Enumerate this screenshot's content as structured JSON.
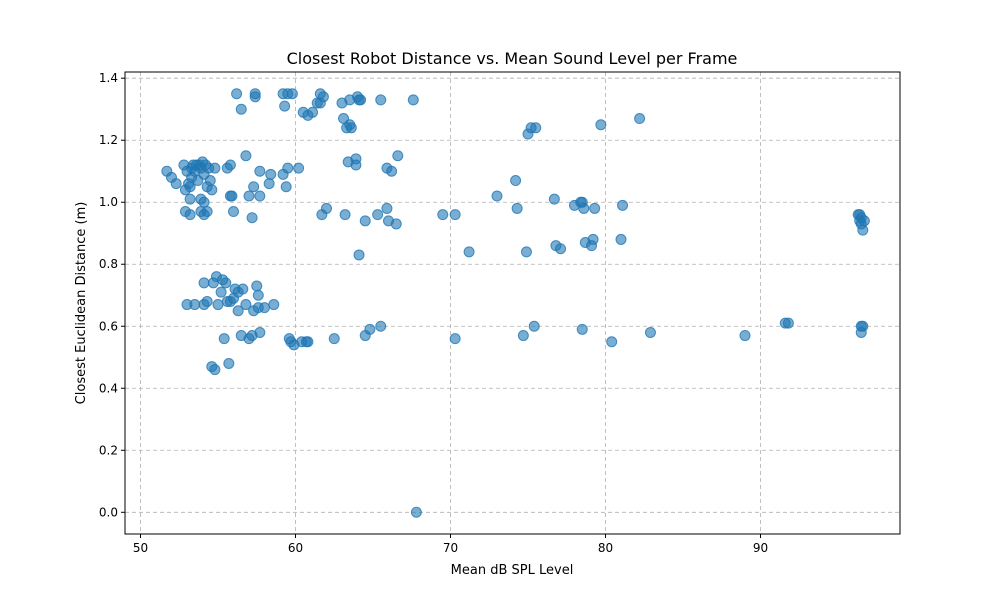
{
  "chart_data": {
    "type": "scatter",
    "title": "Closest Robot Distance vs. Mean Sound Level per Frame",
    "xlabel": "Mean dB SPL Level",
    "ylabel": "Closest Euclidean Distance (m)",
    "xlim": [
      49,
      99
    ],
    "ylim": [
      -0.07,
      1.42
    ],
    "xticks": [
      50,
      60,
      70,
      80,
      90
    ],
    "yticks": [
      0.0,
      0.2,
      0.4,
      0.6,
      0.8,
      1.0,
      1.2,
      1.4
    ],
    "xtick_labels": [
      "50",
      "60",
      "70",
      "80",
      "90"
    ],
    "ytick_labels": [
      "0.0",
      "0.2",
      "0.4",
      "0.6",
      "0.8",
      "1.0",
      "1.2",
      "1.4"
    ],
    "grid": true,
    "color": "#1f77b4",
    "points": [
      [
        56.2,
        1.35
      ],
      [
        57.4,
        1.35
      ],
      [
        57.4,
        1.34
      ],
      [
        59.2,
        1.35
      ],
      [
        59.5,
        1.35
      ],
      [
        59.8,
        1.35
      ],
      [
        56.5,
        1.3
      ],
      [
        59.3,
        1.31
      ],
      [
        60.5,
        1.29
      ],
      [
        60.8,
        1.28
      ],
      [
        61.1,
        1.29
      ],
      [
        61.4,
        1.32
      ],
      [
        61.6,
        1.32
      ],
      [
        61.6,
        1.35
      ],
      [
        61.8,
        1.34
      ],
      [
        63.0,
        1.32
      ],
      [
        63.5,
        1.33
      ],
      [
        64.0,
        1.34
      ],
      [
        64.2,
        1.33
      ],
      [
        64.1,
        1.33
      ],
      [
        65.5,
        1.33
      ],
      [
        67.6,
        1.33
      ],
      [
        63.1,
        1.27
      ],
      [
        63.5,
        1.25
      ],
      [
        63.6,
        1.24
      ],
      [
        63.3,
        1.24
      ],
      [
        75.0,
        1.22
      ],
      [
        75.2,
        1.24
      ],
      [
        75.5,
        1.24
      ],
      [
        79.7,
        1.25
      ],
      [
        82.2,
        1.27
      ],
      [
        63.4,
        1.13
      ],
      [
        63.9,
        1.14
      ],
      [
        63.9,
        1.12
      ],
      [
        65.9,
        1.11
      ],
      [
        66.2,
        1.1
      ],
      [
        66.6,
        1.15
      ],
      [
        51.7,
        1.1
      ],
      [
        52.0,
        1.08
      ],
      [
        52.3,
        1.06
      ],
      [
        52.8,
        1.12
      ],
      [
        52.9,
        1.04
      ],
      [
        53.0,
        1.1
      ],
      [
        53.1,
        1.06
      ],
      [
        53.2,
        1.05
      ],
      [
        53.3,
        1.08
      ],
      [
        53.3,
        1.11
      ],
      [
        53.4,
        1.12
      ],
      [
        53.5,
        1.1
      ],
      [
        53.6,
        1.12
      ],
      [
        53.7,
        1.07
      ],
      [
        53.8,
        1.12
      ],
      [
        53.9,
        1.11
      ],
      [
        54.0,
        1.13
      ],
      [
        54.1,
        1.09
      ],
      [
        54.2,
        1.12
      ],
      [
        54.3,
        1.05
      ],
      [
        54.4,
        1.11
      ],
      [
        54.5,
        1.07
      ],
      [
        54.6,
        1.04
      ],
      [
        54.8,
        1.11
      ],
      [
        55.6,
        1.11
      ],
      [
        55.8,
        1.12
      ],
      [
        56.8,
        1.15
      ],
      [
        57.7,
        1.1
      ],
      [
        58.3,
        1.06
      ],
      [
        58.4,
        1.09
      ],
      [
        59.2,
        1.09
      ],
      [
        59.5,
        1.11
      ],
      [
        59.4,
        1.05
      ],
      [
        60.2,
        1.11
      ],
      [
        53.2,
        1.01
      ],
      [
        53.9,
        1.01
      ],
      [
        54.1,
        1.0
      ],
      [
        55.8,
        1.02
      ],
      [
        55.9,
        1.02
      ],
      [
        57.0,
        1.02
      ],
      [
        57.3,
        1.05
      ],
      [
        57.7,
        1.02
      ],
      [
        52.9,
        0.97
      ],
      [
        53.2,
        0.96
      ],
      [
        53.9,
        0.97
      ],
      [
        54.1,
        0.96
      ],
      [
        54.3,
        0.97
      ],
      [
        56.0,
        0.97
      ],
      [
        57.2,
        0.95
      ],
      [
        61.7,
        0.96
      ],
      [
        62.0,
        0.98
      ],
      [
        63.2,
        0.96
      ],
      [
        64.5,
        0.94
      ],
      [
        65.3,
        0.96
      ],
      [
        65.9,
        0.98
      ],
      [
        66.0,
        0.94
      ],
      [
        66.5,
        0.93
      ],
      [
        64.1,
        0.83
      ],
      [
        69.5,
        0.96
      ],
      [
        70.3,
        0.96
      ],
      [
        71.2,
        0.84
      ],
      [
        73.0,
        1.02
      ],
      [
        74.2,
        1.07
      ],
      [
        74.3,
        0.98
      ],
      [
        74.9,
        0.84
      ],
      [
        76.7,
        1.01
      ],
      [
        76.8,
        0.86
      ],
      [
        77.1,
        0.85
      ],
      [
        78.0,
        0.99
      ],
      [
        78.4,
        1.0
      ],
      [
        78.5,
        1.0
      ],
      [
        78.6,
        0.98
      ],
      [
        78.7,
        0.87
      ],
      [
        79.1,
        0.86
      ],
      [
        79.2,
        0.88
      ],
      [
        79.3,
        0.98
      ],
      [
        81.0,
        0.88
      ],
      [
        81.1,
        0.99
      ],
      [
        96.3,
        0.96
      ],
      [
        96.4,
        0.94
      ],
      [
        96.4,
        0.96
      ],
      [
        96.5,
        0.95
      ],
      [
        96.6,
        0.91
      ],
      [
        96.7,
        0.94
      ],
      [
        96.5,
        0.93
      ],
      [
        54.1,
        0.74
      ],
      [
        54.7,
        0.74
      ],
      [
        54.9,
        0.76
      ],
      [
        55.2,
        0.71
      ],
      [
        55.3,
        0.75
      ],
      [
        55.5,
        0.74
      ],
      [
        55.8,
        0.68
      ],
      [
        56.1,
        0.72
      ],
      [
        56.3,
        0.71
      ],
      [
        56.6,
        0.72
      ],
      [
        57.5,
        0.73
      ],
      [
        57.6,
        0.7
      ],
      [
        54.3,
        0.68
      ],
      [
        53.0,
        0.67
      ],
      [
        53.5,
        0.67
      ],
      [
        54.1,
        0.67
      ],
      [
        55.0,
        0.67
      ],
      [
        55.6,
        0.68
      ],
      [
        56.0,
        0.69
      ],
      [
        56.3,
        0.65
      ],
      [
        56.8,
        0.67
      ],
      [
        57.3,
        0.65
      ],
      [
        57.6,
        0.66
      ],
      [
        58.0,
        0.66
      ],
      [
        58.6,
        0.67
      ],
      [
        55.4,
        0.56
      ],
      [
        56.5,
        0.57
      ],
      [
        57.0,
        0.56
      ],
      [
        57.2,
        0.57
      ],
      [
        57.7,
        0.58
      ],
      [
        59.6,
        0.56
      ],
      [
        59.7,
        0.55
      ],
      [
        59.9,
        0.54
      ],
      [
        60.4,
        0.55
      ],
      [
        60.7,
        0.55
      ],
      [
        60.8,
        0.55
      ],
      [
        62.5,
        0.56
      ],
      [
        64.5,
        0.57
      ],
      [
        64.8,
        0.59
      ],
      [
        65.5,
        0.6
      ],
      [
        54.6,
        0.47
      ],
      [
        54.8,
        0.46
      ],
      [
        55.7,
        0.48
      ],
      [
        70.3,
        0.56
      ],
      [
        74.7,
        0.57
      ],
      [
        75.4,
        0.6
      ],
      [
        78.5,
        0.59
      ],
      [
        80.4,
        0.55
      ],
      [
        82.9,
        0.58
      ],
      [
        89.0,
        0.57
      ],
      [
        91.6,
        0.61
      ],
      [
        91.8,
        0.61
      ],
      [
        96.5,
        0.6
      ],
      [
        96.6,
        0.6
      ],
      [
        96.5,
        0.58
      ],
      [
        67.8,
        0.0
      ]
    ]
  }
}
